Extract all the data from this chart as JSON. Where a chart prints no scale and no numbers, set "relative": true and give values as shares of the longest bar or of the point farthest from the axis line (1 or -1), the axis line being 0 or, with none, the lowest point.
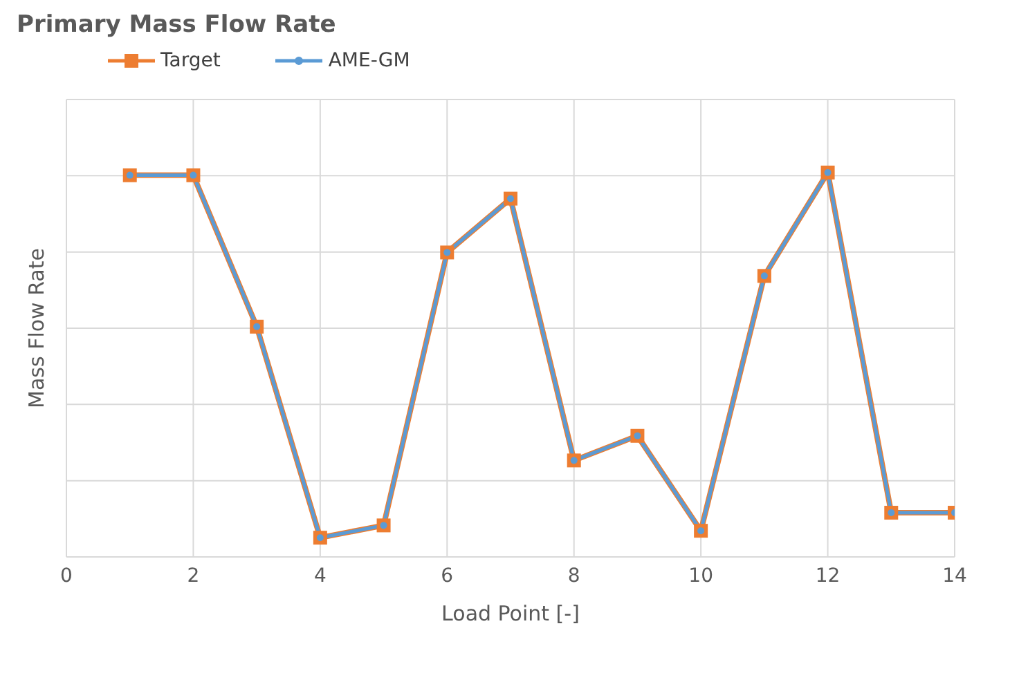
{
  "chart_data": {
    "type": "line",
    "title": "Primary Mass Flow Rate",
    "xlabel": "Load Point [-]",
    "ylabel": "Mass Flow Rate",
    "relative": true,
    "x": [
      1,
      2,
      3,
      4,
      5,
      6,
      7,
      8,
      9,
      10,
      11,
      12,
      13,
      14
    ],
    "xlim": [
      0,
      14
    ],
    "xticks": [
      0,
      2,
      4,
      6,
      8,
      10,
      12,
      14
    ],
    "grid": true,
    "legend": "top left",
    "series": [
      {
        "name": "Target",
        "color": "#ed7d31",
        "marker": "square",
        "values": [
          0.993,
          0.993,
          0.599,
          0.05,
          0.082,
          0.792,
          0.932,
          0.251,
          0.315,
          0.068,
          0.731,
          1,
          0.115,
          0.115
        ]
      },
      {
        "name": "AME-GM",
        "color": "#5b9bd5",
        "marker": "circle",
        "values": [
          0.993,
          0.993,
          0.599,
          0.05,
          0.082,
          0.792,
          0.932,
          0.251,
          0.315,
          0.068,
          0.731,
          1,
          0.115,
          0.115
        ]
      }
    ]
  }
}
